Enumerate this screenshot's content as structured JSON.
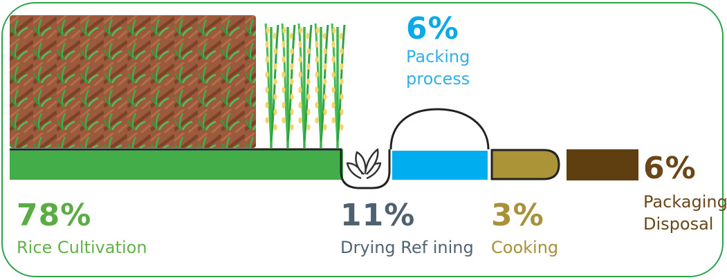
{
  "stages": {
    "packing_process": {
      "percent": "6%",
      "label_line1": "Packing",
      "label_line2": "process",
      "color": "#00aeef"
    },
    "rice_cultivation": {
      "percent": "78%",
      "label": "Rice Cultivation",
      "color": "#43ad4a"
    },
    "drying_refining": {
      "percent": "11%",
      "label": "Drying Ref ining",
      "color": "#4d6170"
    },
    "cooking": {
      "percent": "3%",
      "label": "Cooking",
      "color": "#ab9438"
    },
    "packaging_disposal": {
      "percent": "6%",
      "label_line1": "Packaging",
      "label_line2": "Disposal",
      "color": "#5f3e0f"
    }
  },
  "colors": {
    "frame": "#2ba24a",
    "soil": "#9c5a3a",
    "seedling": "#36b34a",
    "grain": "#f3d46a"
  },
  "icons": [
    "rice-field-icon",
    "rice-plant-icon",
    "sprout-icon"
  ]
}
